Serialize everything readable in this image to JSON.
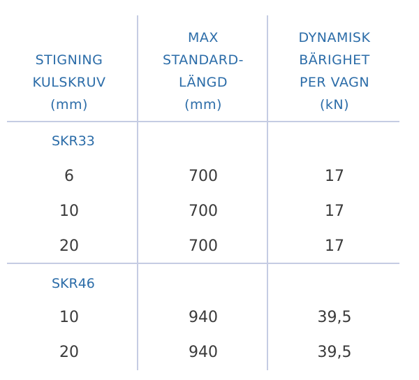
{
  "headers": [
    {
      "lines": [
        "STIGNING",
        "KULSKRUV",
        "(mm)"
      ]
    },
    {
      "lines": [
        "MAX",
        "STANDARD-",
        "LÄNGD",
        "(mm)"
      ]
    },
    {
      "lines": [
        "DYNAMISK",
        "BÄRIGHET",
        "PER VAGN",
        "(kN)"
      ]
    }
  ],
  "groups": [
    {
      "name": "SKR33",
      "rows": [
        {
          "pitch": "6",
          "length": "700",
          "load": "17"
        },
        {
          "pitch": "10",
          "length": "700",
          "load": "17"
        },
        {
          "pitch": "20",
          "length": "700",
          "load": "17"
        }
      ]
    },
    {
      "name": "SKR46",
      "rows": [
        {
          "pitch": "10",
          "length": "940",
          "load": "39,5"
        },
        {
          "pitch": "20",
          "length": "940",
          "load": "39,5"
        }
      ]
    }
  ],
  "colors": {
    "header_text": "#2b6ca8",
    "body_text": "#3a3a3a",
    "rule": "#c5cce3"
  }
}
